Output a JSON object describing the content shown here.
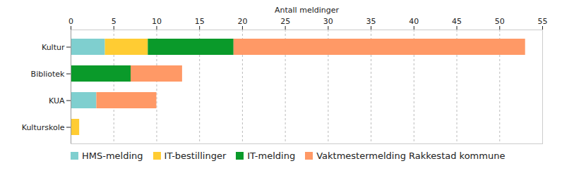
{
  "chart_data": {
    "type": "bar",
    "orientation": "horizontal",
    "stacked": true,
    "grid": true,
    "xlabel": "Antall meldinger",
    "categories": [
      "Kultur",
      "Bibliotek",
      "KUA",
      "Kulturskole"
    ],
    "series": [
      {
        "name": "HMS-melding",
        "color": "#7fcfcf",
        "values": [
          4,
          0,
          3,
          0
        ]
      },
      {
        "name": "IT-bestillinger",
        "color": "#ffcc33",
        "values": [
          5,
          0,
          0,
          1
        ]
      },
      {
        "name": "IT-melding",
        "color": "#0a9a2a",
        "values": [
          10,
          7,
          0,
          0
        ]
      },
      {
        "name": "Vaktmestermelding Rakkestad kommune",
        "color": "#ff9966",
        "values": [
          34,
          6,
          7,
          0
        ]
      }
    ],
    "xlim": [
      0,
      55
    ],
    "xticks": [
      0,
      5,
      10,
      15,
      20,
      25,
      30,
      35,
      40,
      45,
      50,
      55
    ],
    "legend": "bottom"
  }
}
